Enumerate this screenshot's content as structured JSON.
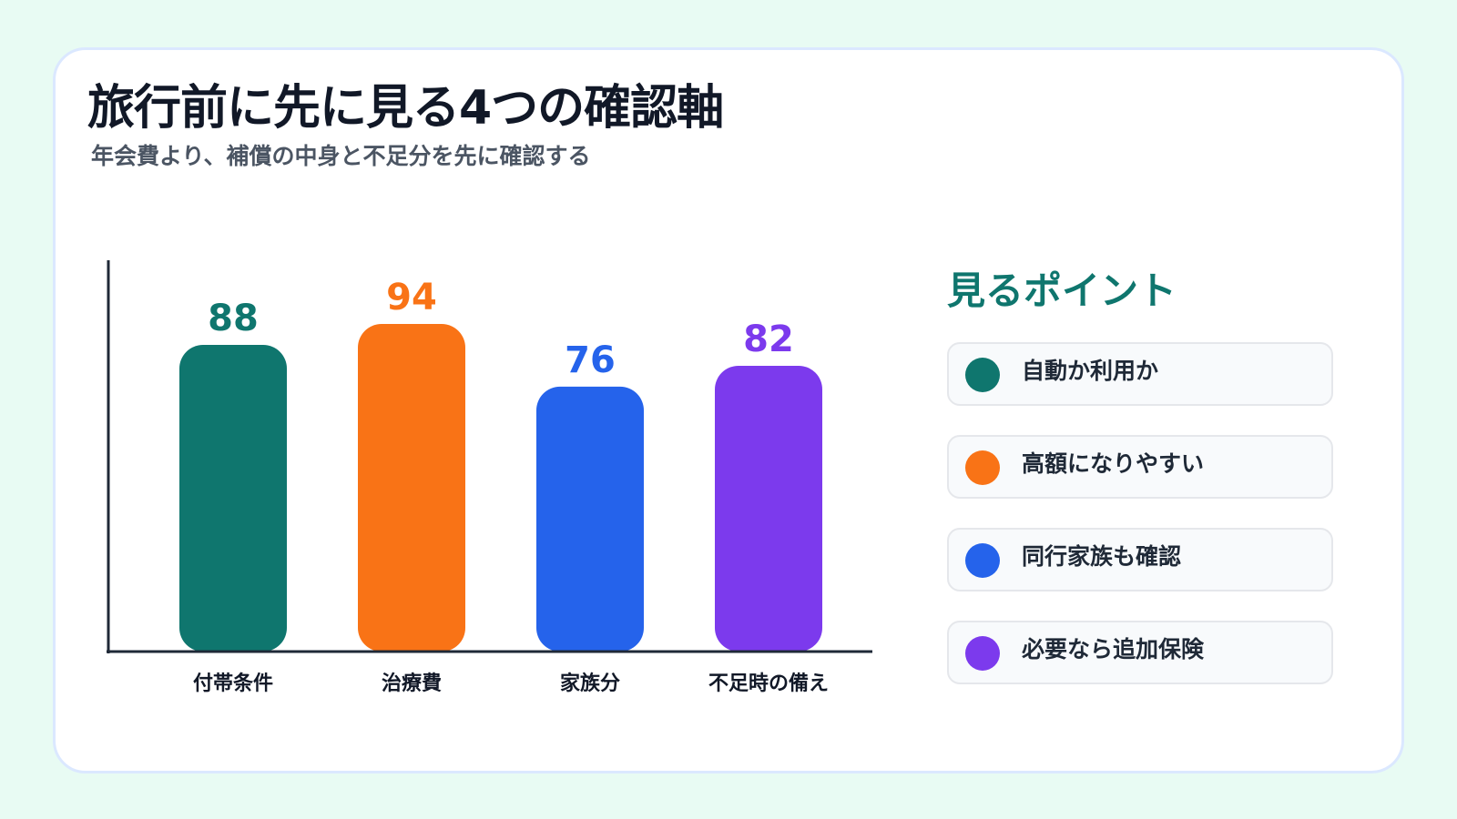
{
  "title": "旅行前に先に見る4つの確認軸",
  "subtitle": "年会費より、補償の中身と不足分を先に確認する",
  "chart_data": {
    "type": "bar",
    "categories": [
      "付帯条件",
      "治療費",
      "家族分",
      "不足時の備え"
    ],
    "values": [
      88,
      94,
      76,
      82
    ],
    "colors": [
      "#0f766e",
      "#f97316",
      "#2563eb",
      "#7c3aed"
    ],
    "title": "",
    "xlabel": "",
    "ylabel": "",
    "ylim": [
      0,
      100
    ],
    "grid": false,
    "data_labels": true
  },
  "legend": {
    "title": "見るポイント",
    "items": [
      {
        "label": "自動か利用か",
        "color": "#0f766e"
      },
      {
        "label": "高額になりやすい",
        "color": "#f97316"
      },
      {
        "label": "同行家族も確認",
        "color": "#2563eb"
      },
      {
        "label": "必要なら追加保険",
        "color": "#7c3aed"
      }
    ]
  }
}
